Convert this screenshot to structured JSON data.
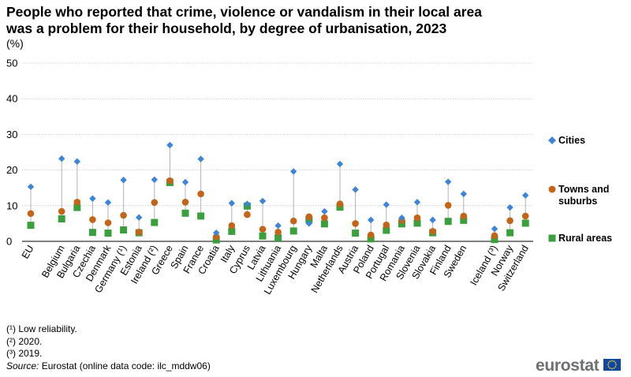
{
  "title": "People who reported that crime, violence or vandalism in their local area was a problem for their household, by degree of urbanisation, 2023",
  "unit": "(%)",
  "colors": {
    "cities": "#3e84d8",
    "towns": "#c46418",
    "rural": "#3aa03e",
    "grid": "#c8c8c8",
    "stem": "#b3b3b3"
  },
  "legend": [
    {
      "name": "Cities",
      "shape": "diamond"
    },
    {
      "name": "Towns and suburbs",
      "shape": "circle"
    },
    {
      "name": "Rural areas",
      "shape": "square"
    }
  ],
  "chart_data": {
    "type": "scatter",
    "title": "People who reported that crime, violence or vandalism in their local area was a problem for their household, by degree of urbanisation, 2023",
    "ylabel": "(%)",
    "ylim": [
      0,
      50
    ],
    "yticks": [
      0,
      10,
      20,
      30,
      40,
      50
    ],
    "grid": true,
    "legend_position": "right",
    "categories": [
      "EU",
      "",
      "Belgium",
      "Bulgaria",
      "Czechia",
      "Denmark",
      "Germany (¹)",
      "Estonia",
      "Ireland (²)",
      "Greece",
      "Spain",
      "France",
      "Croatia",
      "Italy",
      "Cyprus",
      "Latvia",
      "Lithuania",
      "Luxembourg",
      "Hungary",
      "Malta",
      "Netherlands",
      "Austria",
      "Poland",
      "Portugal",
      "Romania",
      "Slovenia",
      "Slovakia",
      "Finland",
      "Sweden",
      "",
      "Iceland (³)",
      "Norway",
      "Switzerland"
    ],
    "series": [
      {
        "name": "Cities",
        "values": [
          15.3,
          null,
          23.2,
          22.4,
          12.0,
          10.9,
          17.2,
          6.7,
          17.3,
          27.0,
          16.6,
          23.1,
          2.4,
          10.7,
          10.5,
          11.3,
          4.4,
          19.6,
          5.0,
          8.4,
          21.7,
          14.5,
          6.0,
          10.3,
          6.6,
          11.0,
          6.0,
          16.7,
          13.3,
          null,
          3.5,
          9.5,
          12.9
        ]
      },
      {
        "name": "Towns and suburbs",
        "values": [
          7.8,
          null,
          8.4,
          11.0,
          6.1,
          5.2,
          7.3,
          2.6,
          10.9,
          17.0,
          11.0,
          13.3,
          1.3,
          4.4,
          7.5,
          3.4,
          2.6,
          5.7,
          6.9,
          6.6,
          10.5,
          5.0,
          1.8,
          4.6,
          5.9,
          6.6,
          2.8,
          10.1,
          7.1,
          null,
          1.6,
          5.8,
          7.1
        ]
      },
      {
        "name": "Rural areas",
        "values": [
          4.5,
          null,
          6.3,
          9.5,
          2.5,
          2.3,
          3.2,
          2.4,
          5.3,
          16.5,
          7.9,
          7.1,
          0.4,
          2.8,
          9.9,
          1.5,
          1.0,
          2.9,
          6.1,
          4.9,
          9.6,
          2.3,
          0.7,
          3.1,
          4.9,
          5.1,
          2.4,
          5.6,
          5.9,
          null,
          0.5,
          2.4,
          5.1
        ]
      }
    ]
  },
  "notes": [
    "(¹) Low reliability.",
    "(²) 2020.",
    "(³) 2019."
  ],
  "source": {
    "label": "Source:",
    "text": " Eurostat (online data code: ilc_mddw06)"
  },
  "brand": "eurostat"
}
